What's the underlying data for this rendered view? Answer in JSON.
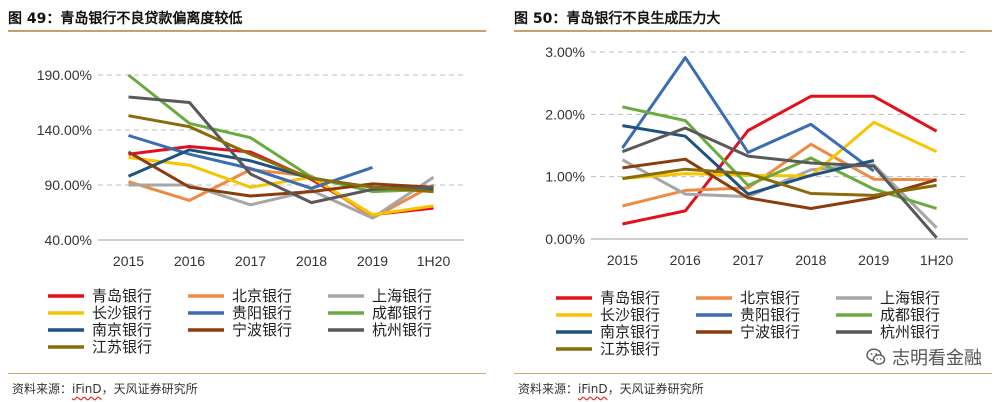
{
  "colors": [
    "#e3101c",
    "#ee8a43",
    "#a6a6a6",
    "#f7c400",
    "#3b6db3",
    "#6aab3f",
    "#1f527e",
    "#8a3d0c",
    "#595959",
    "#8a6b0a"
  ],
  "left": {
    "title": "图 49：青岛银行不良贷款偏离度较低",
    "source_prefix": "资料来源：",
    "source_ifind": "iFinD",
    "source_suffix": "，天风证券研究所"
  },
  "right": {
    "title": "图 50：青岛银行不良生成压力大",
    "source_prefix": "资料来源：",
    "source_ifind": "iFinD",
    "source_suffix": "，天风证券研究所",
    "watermark": "志明看金融",
    "watermark_icon": "wechat-icon"
  },
  "chart_data": [
    {
      "type": "line",
      "categories": [
        "2015",
        "2016",
        "2017",
        "2018",
        "2019",
        "1H20"
      ],
      "ylim": [
        40,
        190
      ],
      "yticks": [
        40,
        90,
        140,
        190
      ],
      "ytick_labels": [
        "40.00%",
        "90.00%",
        "140.00%",
        "190.00%"
      ],
      "grid": true,
      "legend": "bottom",
      "series": [
        {
          "name": "青岛银行",
          "values": [
            118,
            125,
            120,
            95,
            63,
            69
          ]
        },
        {
          "name": "北京银行",
          "values": [
            93,
            76,
            104,
            98,
            60,
            90
          ]
        },
        {
          "name": "上海银行",
          "values": [
            90,
            90,
            72,
            85,
            60,
            97
          ]
        },
        {
          "name": "长沙银行",
          "values": [
            115,
            108,
            88,
            97,
            63,
            71
          ]
        },
        {
          "name": "贵阳银行",
          "values": [
            135,
            118,
            105,
            87,
            106,
            null
          ]
        },
        {
          "name": "成都银行",
          "values": [
            190,
            146,
            133,
            97,
            84,
            86
          ]
        },
        {
          "name": "南京银行",
          "values": [
            98,
            122,
            112,
            96,
            88,
            86
          ]
        },
        {
          "name": "宁波银行",
          "values": [
            120,
            88,
            80,
            84,
            91,
            88
          ]
        },
        {
          "name": "杭州银行",
          "values": [
            170,
            165,
            100,
            74,
            86,
            88
          ]
        },
        {
          "name": "江苏银行",
          "values": [
            153,
            143,
            118,
            96,
            88,
            84
          ]
        }
      ]
    },
    {
      "type": "line",
      "categories": [
        "2015",
        "2016",
        "2017",
        "2018",
        "2019",
        "1H20"
      ],
      "ylim": [
        0,
        3
      ],
      "yticks": [
        0,
        1,
        2,
        3
      ],
      "ytick_labels": [
        "0.00%",
        "1.00%",
        "2.00%",
        "3.00%"
      ],
      "grid": true,
      "legend": "bottom",
      "series": [
        {
          "name": "青岛银行",
          "values": [
            0.24,
            0.45,
            1.74,
            2.29,
            2.29,
            1.73
          ]
        },
        {
          "name": "北京银行",
          "values": [
            0.53,
            0.78,
            0.82,
            1.52,
            0.96,
            0.95
          ]
        },
        {
          "name": "上海银行",
          "values": [
            1.27,
            0.72,
            0.68,
            1.11,
            1.19,
            0.18
          ]
        },
        {
          "name": "长沙银行",
          "values": [
            0.97,
            1.05,
            1.02,
            1.01,
            1.87,
            1.4
          ]
        },
        {
          "name": "贵阳银行",
          "values": [
            1.46,
            2.91,
            1.39,
            1.84,
            1.09,
            null
          ]
        },
        {
          "name": "成都银行",
          "values": [
            2.12,
            1.9,
            0.86,
            1.3,
            0.8,
            0.49
          ]
        },
        {
          "name": "南京银行",
          "values": [
            1.82,
            1.65,
            0.72,
            1.02,
            1.26,
            null
          ]
        },
        {
          "name": "宁波银行",
          "values": [
            1.14,
            1.28,
            0.66,
            0.49,
            0.66,
            0.95
          ]
        },
        {
          "name": "杭州银行",
          "values": [
            1.4,
            1.78,
            1.33,
            1.22,
            1.17,
            0.02
          ]
        },
        {
          "name": "江苏银行",
          "values": [
            0.97,
            1.12,
            1.05,
            0.73,
            0.7,
            0.86
          ]
        }
      ]
    }
  ]
}
